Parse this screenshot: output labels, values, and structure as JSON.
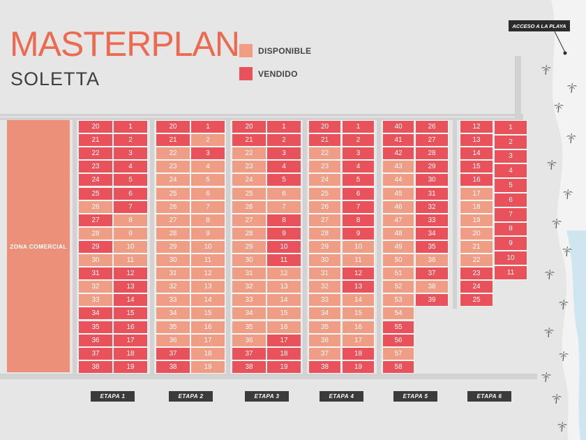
{
  "title": "MASTERPLAN",
  "subtitle": "SOLETTA",
  "colors": {
    "disponible": "#ef9e85",
    "vendido": "#e9525a",
    "zona_comercial": "#ec9079",
    "etapa_label_bg": "#3b3b3b"
  },
  "legend": [
    {
      "label": "DISPONIBLE",
      "status": "disponible"
    },
    {
      "label": "VENDIDO",
      "status": "vendido"
    }
  ],
  "zona_comercial": "ZONA COMERCIAL",
  "acceso": "ACCESO A LA PLAYA",
  "palm_icon": "palm-tree-icon",
  "etapas": [
    {
      "label": "ETAPA 1",
      "columns": [
        {
          "lots": [
            "20",
            "21",
            "22",
            "23",
            "24",
            "25",
            "26",
            "27",
            "28",
            "29",
            "30",
            "31",
            "32",
            "33",
            "34",
            "35",
            "36",
            "37",
            "38"
          ],
          "sold": [
            1,
            1,
            1,
            1,
            1,
            1,
            0,
            1,
            0,
            1,
            0,
            1,
            0,
            0,
            1,
            1,
            1,
            1,
            1
          ]
        },
        {
          "lots": [
            "1",
            "2",
            "3",
            "4",
            "5",
            "6",
            "7",
            "8",
            "9",
            "10",
            "11",
            "12",
            "13",
            "14",
            "15",
            "16",
            "17",
            "18",
            "19"
          ],
          "sold": [
            1,
            1,
            1,
            1,
            1,
            1,
            1,
            0,
            0,
            0,
            0,
            1,
            1,
            1,
            1,
            1,
            1,
            1,
            1
          ]
        }
      ]
    },
    {
      "label": "ETAPA 2",
      "columns": [
        {
          "lots": [
            "20",
            "21",
            "22",
            "23",
            "24",
            "25",
            "26",
            "27",
            "28",
            "29",
            "30",
            "31",
            "32",
            "33",
            "34",
            "35",
            "36",
            "37",
            "38"
          ],
          "sold": [
            1,
            1,
            0,
            0,
            0,
            0,
            0,
            0,
            0,
            0,
            0,
            0,
            0,
            0,
            0,
            0,
            0,
            1,
            1
          ]
        },
        {
          "lots": [
            "1",
            "2",
            "3",
            "4",
            "5",
            "6",
            "7",
            "8",
            "9",
            "10",
            "11",
            "12",
            "13",
            "14",
            "15",
            "16",
            "17",
            "18",
            "19"
          ],
          "sold": [
            1,
            0,
            1,
            0,
            0,
            0,
            0,
            0,
            0,
            0,
            0,
            0,
            0,
            0,
            0,
            0,
            0,
            0,
            0
          ]
        }
      ]
    },
    {
      "label": "ETAPA 3",
      "columns": [
        {
          "lots": [
            "20",
            "21",
            "22",
            "23",
            "24",
            "25",
            "26",
            "27",
            "28",
            "29",
            "30",
            "31",
            "32",
            "33",
            "34",
            "35",
            "36",
            "37",
            "38"
          ],
          "sold": [
            1,
            1,
            0,
            0,
            0,
            0,
            0,
            0,
            0,
            0,
            0,
            0,
            0,
            0,
            0,
            0,
            0,
            1,
            1
          ]
        },
        {
          "lots": [
            "1",
            "2",
            "3",
            "4",
            "5",
            "6",
            "7",
            "8",
            "9",
            "10",
            "11",
            "12",
            "13",
            "14",
            "15",
            "16",
            "17",
            "18",
            "19"
          ],
          "sold": [
            1,
            1,
            1,
            1,
            1,
            0,
            0,
            1,
            1,
            1,
            1,
            0,
            0,
            0,
            0,
            0,
            1,
            1,
            1
          ]
        }
      ]
    },
    {
      "label": "ETAPA 4",
      "columns": [
        {
          "lots": [
            "20",
            "21",
            "22",
            "23",
            "24",
            "25",
            "26",
            "27",
            "28",
            "29",
            "30",
            "31",
            "32",
            "33",
            "34",
            "35",
            "36",
            "37",
            "38"
          ],
          "sold": [
            1,
            1,
            0,
            0,
            0,
            0,
            0,
            0,
            0,
            0,
            0,
            0,
            0,
            0,
            0,
            0,
            0,
            0,
            1
          ]
        },
        {
          "lots": [
            "1",
            "2",
            "3",
            "4",
            "5",
            "6",
            "7",
            "8",
            "9",
            "10",
            "11",
            "12",
            "13",
            "14",
            "15",
            "16",
            "17",
            "18",
            "19"
          ],
          "sold": [
            1,
            1,
            1,
            1,
            1,
            1,
            1,
            1,
            1,
            0,
            0,
            1,
            1,
            0,
            0,
            0,
            0,
            1,
            1
          ]
        }
      ]
    },
    {
      "label": "ETAPA 5",
      "columns": [
        {
          "lots": [
            "40",
            "41",
            "42",
            "43",
            "44",
            "45",
            "46",
            "47",
            "48",
            "49",
            "50",
            "51",
            "52",
            "53",
            "54",
            "55",
            "56",
            "57",
            "58"
          ],
          "sold": [
            1,
            1,
            1,
            0,
            0,
            0,
            0,
            0,
            0,
            0,
            0,
            0,
            0,
            0,
            0,
            1,
            1,
            0,
            1
          ]
        },
        {
          "lots": [
            "26",
            "27",
            "28",
            "29",
            "30",
            "31",
            "32",
            "33",
            "34",
            "35",
            "36",
            "37",
            "38",
            "39"
          ],
          "sold": [
            1,
            1,
            1,
            1,
            1,
            1,
            1,
            1,
            1,
            1,
            0,
            1,
            0,
            1
          ]
        }
      ]
    },
    {
      "label": "ETAPA 6",
      "columns": [
        {
          "lots": [
            "12",
            "13",
            "14",
            "15",
            "16",
            "17",
            "18",
            "19",
            "20",
            "21",
            "22",
            "23",
            "24",
            "25"
          ],
          "sold": [
            1,
            1,
            1,
            1,
            1,
            0,
            0,
            0,
            0,
            0,
            0,
            1,
            1,
            1
          ]
        },
        {
          "lots": [
            "1",
            "2",
            "3",
            "4",
            "5",
            "6",
            "7",
            "8",
            "9",
            "10",
            "11"
          ],
          "sold": [
            1,
            1,
            1,
            1,
            1,
            1,
            1,
            1,
            1,
            1,
            1
          ]
        }
      ]
    }
  ]
}
